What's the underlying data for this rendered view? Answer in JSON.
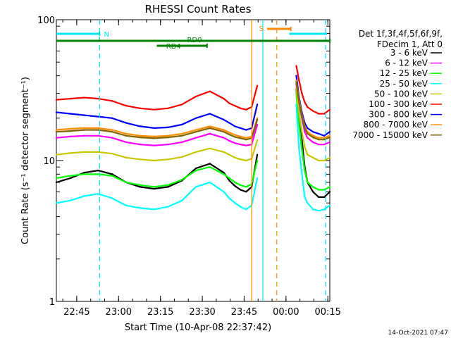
{
  "chart_data": {
    "type": "line",
    "title": "RHESSI Count Rates",
    "xlabel": "Start Time (10-Apr-08 22:37:42)",
    "ylabel": "Count Rate (s⁻¹ detector segment⁻¹)",
    "y_scale": "log",
    "ylim": [
      1,
      100
    ],
    "xlim_minutes_after_start": [
      0,
      98
    ],
    "x_ticks": [
      "22:45",
      "23:00",
      "23:15",
      "23:30",
      "23:45",
      "00:00",
      "00:15"
    ],
    "y_ticks": [
      "1",
      "10",
      "100"
    ],
    "legend_header": [
      "Det 1f,3f,4f,5f,6f,9f,",
      "FDecim 1, Att 0"
    ],
    "legend_placement": "right",
    "x_minutes_after_start": [
      0,
      5,
      10,
      15,
      20,
      25,
      30,
      35,
      40,
      45,
      50,
      55,
      60,
      62,
      64,
      66,
      68,
      70,
      72,
      73,
      85,
      86,
      87,
      88,
      89,
      90,
      92,
      94,
      96,
      98
    ],
    "series": [
      {
        "name": "3 - 6 keV",
        "color": "#000000",
        "values": [
          7.0,
          7.5,
          8.2,
          8.5,
          8.0,
          7.0,
          6.5,
          6.3,
          6.5,
          7.2,
          8.8,
          9.5,
          8.2,
          7.2,
          6.6,
          6.2,
          6.0,
          6.5,
          11.0,
          null,
          null,
          32.0,
          20.0,
          14.0,
          9.0,
          7.0,
          6.0,
          5.5,
          5.5,
          6.0
        ]
      },
      {
        "name": "6 - 12 keV",
        "color": "#ff00ff",
        "values": [
          14.5,
          14.8,
          15.0,
          15.0,
          14.5,
          13.5,
          13.0,
          12.8,
          13.0,
          13.5,
          14.5,
          15.5,
          14.5,
          13.8,
          13.3,
          13.0,
          12.8,
          13.0,
          18.0,
          null,
          null,
          35.0,
          25.0,
          20.0,
          16.0,
          14.5,
          13.5,
          13.0,
          13.0,
          13.5
        ]
      },
      {
        "name": "12 - 25 keV",
        "color": "#00ff00",
        "values": [
          7.5,
          7.8,
          8.0,
          8.0,
          7.8,
          7.0,
          6.7,
          6.5,
          6.7,
          7.3,
          8.5,
          9.0,
          8.0,
          7.5,
          7.0,
          6.7,
          6.5,
          6.8,
          10.0,
          null,
          null,
          30.0,
          18.0,
          12.0,
          8.5,
          7.0,
          6.5,
          6.2,
          6.2,
          6.5
        ]
      },
      {
        "name": "25 - 50 keV",
        "color": "#00ffff",
        "values": [
          5.0,
          5.2,
          5.6,
          5.8,
          5.4,
          4.8,
          4.6,
          4.5,
          4.7,
          5.2,
          6.5,
          7.0,
          6.0,
          5.4,
          5.0,
          4.7,
          4.5,
          4.8,
          7.5,
          null,
          null,
          25.0,
          12.0,
          8.0,
          5.5,
          5.0,
          4.5,
          4.4,
          4.5,
          4.8
        ]
      },
      {
        "name": "50 - 100 keV",
        "color": "#c8c800",
        "values": [
          11.0,
          11.3,
          11.5,
          11.5,
          11.2,
          10.5,
          10.2,
          10.0,
          10.2,
          10.6,
          11.5,
          12.2,
          11.5,
          11.0,
          10.5,
          10.2,
          10.0,
          10.3,
          14.0,
          null,
          null,
          33.0,
          22.0,
          16.0,
          12.5,
          11.0,
          10.5,
          10.0,
          10.0,
          10.5
        ]
      },
      {
        "name": "100 - 300 keV",
        "color": "#ff0000",
        "values": [
          27.0,
          27.5,
          28.0,
          27.5,
          26.5,
          24.5,
          23.5,
          23.0,
          23.5,
          25.0,
          28.5,
          31.0,
          27.5,
          25.5,
          24.5,
          23.5,
          23.0,
          24.0,
          34.0,
          null,
          null,
          47.0,
          37.0,
          30.0,
          26.0,
          24.0,
          22.5,
          21.5,
          21.5,
          23.0
        ]
      },
      {
        "name": "300 - 800 keV",
        "color": "#0000ff",
        "values": [
          22.0,
          21.5,
          21.0,
          20.5,
          20.0,
          18.5,
          17.5,
          17.0,
          17.2,
          18.0,
          20.0,
          21.5,
          19.5,
          18.5,
          17.5,
          17.0,
          16.5,
          17.0,
          25.0,
          null,
          null,
          40.0,
          28.0,
          22.0,
          18.5,
          17.0,
          16.0,
          15.5,
          15.0,
          16.0
        ]
      },
      {
        "name": "800 - 7000 keV",
        "color": "#ff8c00",
        "values": [
          16.5,
          16.8,
          17.0,
          17.0,
          16.5,
          15.5,
          15.0,
          14.8,
          15.0,
          15.5,
          16.5,
          17.5,
          16.5,
          15.8,
          15.2,
          14.8,
          14.5,
          14.8,
          20.0,
          null,
          null,
          37.0,
          27.0,
          21.0,
          17.5,
          16.0,
          15.0,
          14.5,
          14.5,
          15.0
        ]
      },
      {
        "name": "7000 - 15000 keV",
        "color": "#806400",
        "values": [
          16.0,
          16.2,
          16.5,
          16.5,
          16.0,
          15.0,
          14.6,
          14.4,
          14.6,
          15.0,
          16.0,
          17.0,
          16.0,
          15.3,
          14.7,
          14.4,
          14.1,
          14.4,
          19.5,
          null,
          null,
          36.0,
          26.0,
          20.5,
          17.0,
          15.5,
          14.6,
          14.1,
          14.1,
          14.6
        ]
      }
    ],
    "annotations": {
      "N": {
        "label": "N",
        "color": "#00e5ee",
        "start": 0,
        "end": 15.5
      },
      "RD0": {
        "label": "RD0",
        "color": "#008000",
        "start": 0,
        "end": 98
      },
      "RD4": {
        "label": "RD4",
        "color": "#008000",
        "start": 36,
        "end": 54
      },
      "S": {
        "label": "S",
        "color": "#ff8c00",
        "start": 75.5,
        "end": 84
      }
    },
    "vertical_lines": [
      {
        "color": "#00e5ee",
        "style": "dashed",
        "x": 15.5
      },
      {
        "color": "#ff8c00",
        "style": "solid",
        "x": 70.0
      },
      {
        "color": "#00e5ee",
        "style": "solid",
        "x": 74.0
      },
      {
        "color": "#ff8c00",
        "style": "dashed",
        "x": 79.0
      },
      {
        "color": "#00e5ee",
        "style": "dashed",
        "x": 96.5
      }
    ]
  },
  "footer": {
    "timestamp": "14-Oct-2021 07:47"
  }
}
